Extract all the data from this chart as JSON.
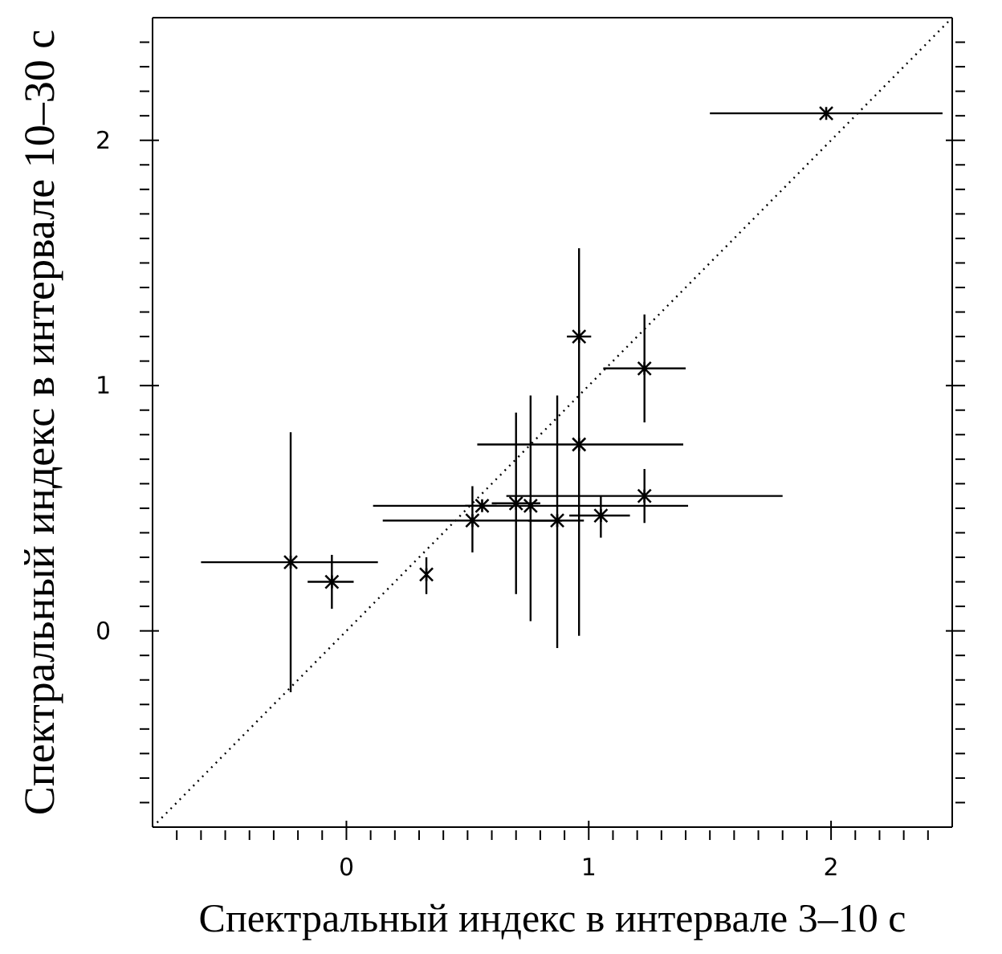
{
  "chart_data": {
    "type": "scatter",
    "xlabel": "Спектральный индекс в интервале 3–10 с",
    "ylabel": "Спектральный индекс в интервале 10–30 с",
    "xlim": [
      -0.8,
      2.5
    ],
    "ylim": [
      -0.8,
      2.5
    ],
    "xticks": [
      {
        "value": -0.7,
        "label": null
      },
      {
        "value": -0.6,
        "label": null
      },
      {
        "value": -0.5,
        "label": null
      },
      {
        "value": -0.4,
        "label": null
      },
      {
        "value": -0.3,
        "label": null
      },
      {
        "value": -0.2,
        "label": null
      },
      {
        "value": -0.1,
        "label": null
      },
      0,
      {
        "value": 0.1,
        "label": null
      },
      {
        "value": 0.2,
        "label": null
      },
      {
        "value": 0.3,
        "label": null
      },
      {
        "value": 0.4,
        "label": null
      },
      {
        "value": 0.5,
        "label": null
      },
      {
        "value": 0.6,
        "label": null
      },
      {
        "value": 0.7,
        "label": null
      },
      {
        "value": 0.8,
        "label": null
      },
      {
        "value": 0.9,
        "label": null
      },
      1,
      {
        "value": 1.1,
        "label": null
      },
      {
        "value": 1.2,
        "label": null
      },
      {
        "value": 1.3,
        "label": null
      },
      {
        "value": 1.4,
        "label": null
      },
      {
        "value": 1.5,
        "label": null
      },
      {
        "value": 1.6,
        "label": null
      },
      {
        "value": 1.7,
        "label": null
      },
      {
        "value": 1.8,
        "label": null
      },
      {
        "value": 1.9,
        "label": null
      },
      2,
      {
        "value": 2.1,
        "label": null
      },
      {
        "value": 2.2,
        "label": null
      },
      {
        "value": 2.3,
        "label": null
      },
      {
        "value": 2.4,
        "label": null
      }
    ],
    "yticks": [
      {
        "value": -0.7,
        "label": null
      },
      {
        "value": -0.6,
        "label": null
      },
      {
        "value": -0.5,
        "label": null
      },
      {
        "value": -0.4,
        "label": null
      },
      {
        "value": -0.3,
        "label": null
      },
      {
        "value": -0.2,
        "label": null
      },
      {
        "value": -0.1,
        "label": null
      },
      0,
      {
        "value": 0.1,
        "label": null
      },
      {
        "value": 0.2,
        "label": null
      },
      {
        "value": 0.3,
        "label": null
      },
      {
        "value": 0.4,
        "label": null
      },
      {
        "value": 0.5,
        "label": null
      },
      {
        "value": 0.6,
        "label": null
      },
      {
        "value": 0.7,
        "label": null
      },
      {
        "value": 0.8,
        "label": null
      },
      {
        "value": 0.9,
        "label": null
      },
      1,
      {
        "value": 1.1,
        "label": null
      },
      {
        "value": 1.2,
        "label": null
      },
      {
        "value": 1.3,
        "label": null
      },
      {
        "value": 1.4,
        "label": null
      },
      {
        "value": 1.5,
        "label": null
      },
      {
        "value": 1.6,
        "label": null
      },
      {
        "value": 1.7,
        "label": null
      },
      {
        "value": 1.8,
        "label": null
      },
      {
        "value": 1.9,
        "label": null
      },
      2,
      {
        "value": 2.1,
        "label": null
      },
      {
        "value": 2.2,
        "label": null
      },
      {
        "value": 2.3,
        "label": null
      },
      {
        "value": 2.4,
        "label": null
      }
    ],
    "marker": "cross",
    "series": [
      {
        "type": "scatter",
        "color": "#000000",
        "x": [
          -0.23,
          -0.06,
          0.33,
          0.52,
          0.56,
          0.7,
          0.76,
          0.87,
          0.96,
          0.96,
          1.05,
          1.23,
          1.23,
          1.98
        ],
        "values": [
          0.28,
          0.2,
          0.23,
          0.45,
          0.51,
          0.52,
          0.51,
          0.45,
          0.76,
          1.2,
          0.47,
          0.55,
          1.07,
          2.11
        ],
        "xerrors": [
          [
            -0.6,
            0.13
          ],
          [
            -0.16,
            0.03
          ],
          null,
          [
            0.15,
            0.89
          ],
          [
            0.49,
            0.62
          ],
          [
            0.6,
            0.8
          ],
          [
            0.11,
            1.41
          ],
          [
            0.75,
            0.98
          ],
          [
            0.54,
            1.39
          ],
          [
            0.91,
            1.01
          ],
          [
            0.92,
            1.17
          ],
          [
            0.66,
            1.8
          ],
          [
            1.06,
            1.4
          ],
          [
            1.5,
            2.46
          ]
        ],
        "errors": [
          [
            -0.25,
            0.81
          ],
          [
            0.09,
            0.31
          ],
          [
            0.15,
            0.3
          ],
          [
            0.32,
            0.59
          ],
          null,
          [
            0.15,
            0.89
          ],
          [
            0.04,
            0.96
          ],
          [
            -0.07,
            0.96
          ],
          [
            -0.02,
            0.84
          ],
          [
            0.84,
            1.56
          ],
          [
            0.38,
            0.55
          ],
          [
            0.44,
            0.66
          ],
          [
            0.85,
            1.29
          ],
          null
        ]
      },
      {
        "type": "line",
        "color": "#000000",
        "x": [
          -0.8,
          2.5
        ],
        "values": [
          -0.8,
          2.5
        ],
        "line_style": "dotted",
        "marker": "none"
      }
    ]
  }
}
